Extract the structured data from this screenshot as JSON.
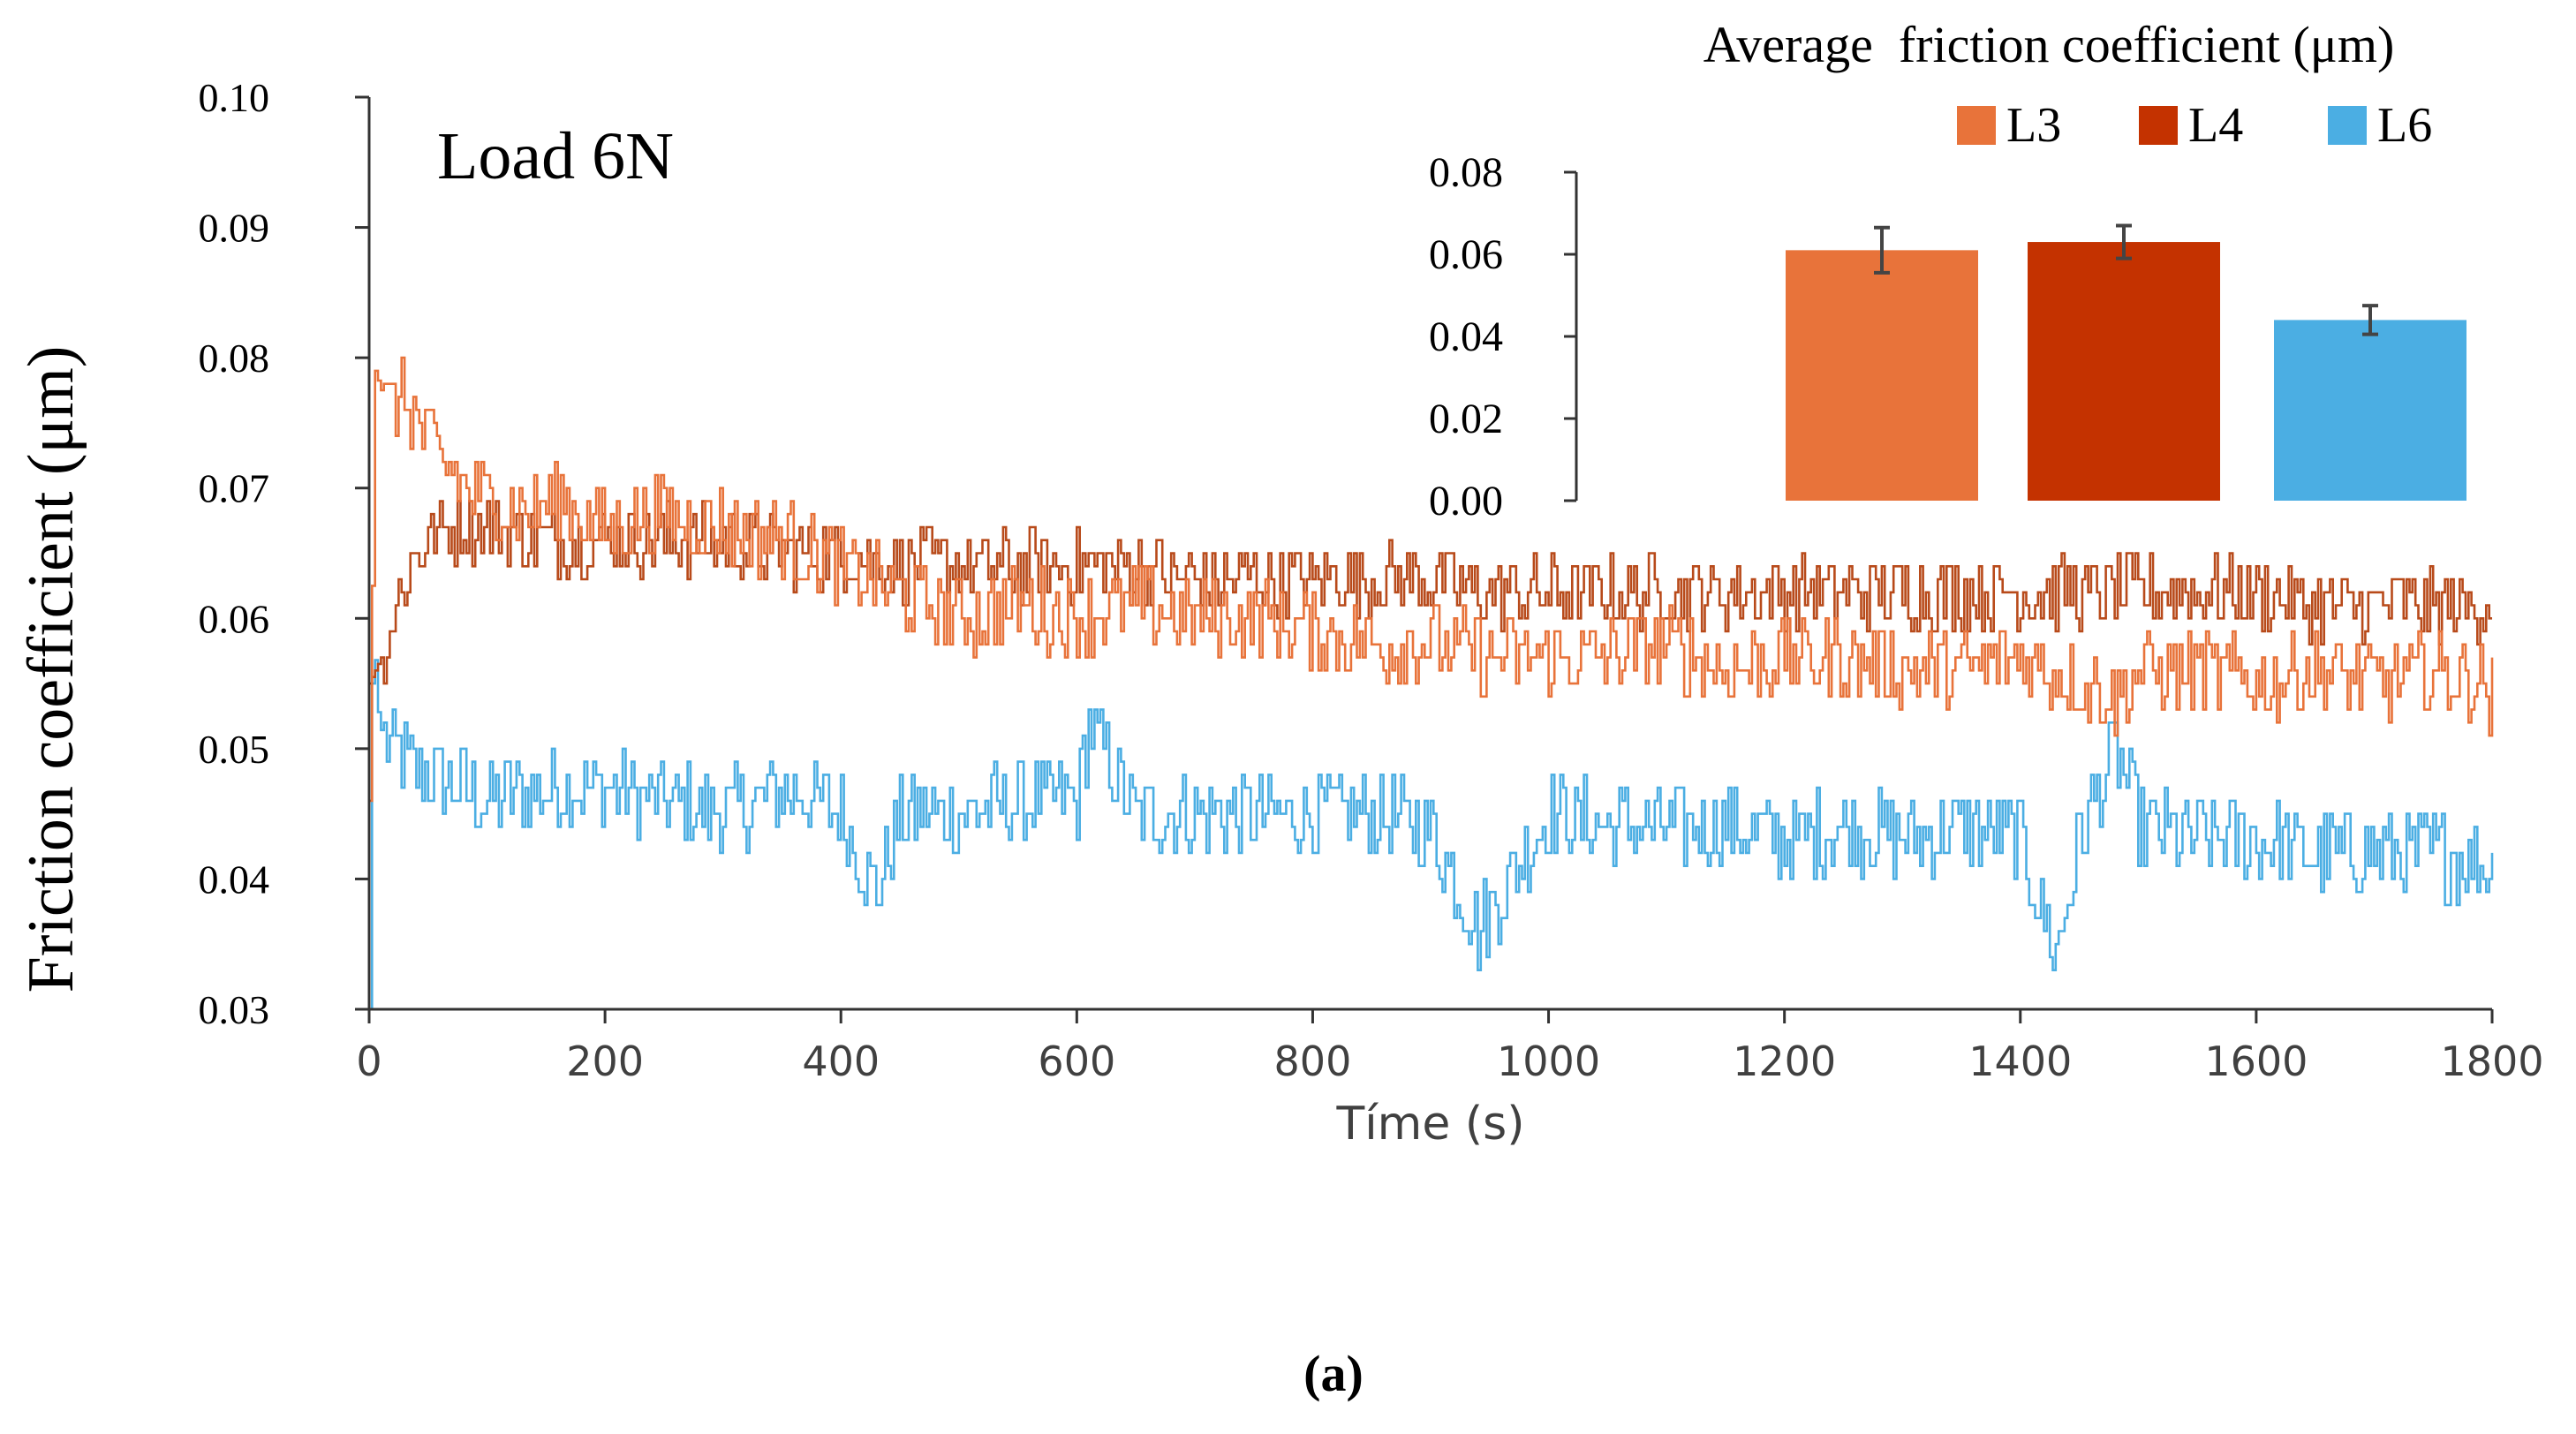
{
  "colors": {
    "L3": "#E8733A",
    "L4": "#C43200",
    "L6": "#4BAEE3",
    "L4_line": "#B84A1A",
    "axis": "#333333",
    "text": "#000000",
    "tick_text": "#404040"
  },
  "chart_data": [
    {
      "type": "line",
      "annotation": "Load 6N",
      "xlabel": "Tíme (s)",
      "ylabel": "Friction coefficient (μm)",
      "xlim": [
        0,
        1800
      ],
      "ylim": [
        0.03,
        0.1
      ],
      "xticks": [
        "0",
        "200",
        "400",
        "600",
        "800",
        "1000",
        "1200",
        "1400",
        "1600",
        "1800"
      ],
      "yticks": [
        "0.03",
        "0.04",
        "0.05",
        "0.06",
        "0.07",
        "0.08",
        "0.09",
        "0.10"
      ],
      "series": [
        {
          "name": "L3",
          "x": [
            0,
            5,
            15,
            30,
            45,
            60,
            80,
            100,
            130,
            160,
            200,
            250,
            300,
            350,
            400,
            450,
            500,
            550,
            600,
            650,
            700,
            750,
            800,
            850,
            900,
            950,
            1000,
            1050,
            1100,
            1150,
            1200,
            1250,
            1300,
            1350,
            1400,
            1450,
            1480,
            1500,
            1550,
            1600,
            1650,
            1700,
            1750,
            1790,
            1800
          ],
          "y": [
            0.046,
            0.079,
            0.076,
            0.077,
            0.074,
            0.072,
            0.07,
            0.069,
            0.068,
            0.069,
            0.067,
            0.068,
            0.067,
            0.066,
            0.064,
            0.062,
            0.06,
            0.061,
            0.06,
            0.061,
            0.06,
            0.06,
            0.059,
            0.058,
            0.058,
            0.057,
            0.057,
            0.057,
            0.058,
            0.056,
            0.057,
            0.057,
            0.056,
            0.056,
            0.057,
            0.055,
            0.054,
            0.056,
            0.056,
            0.055,
            0.056,
            0.055,
            0.056,
            0.055,
            0.054
          ]
        },
        {
          "name": "L4",
          "x": [
            0,
            10,
            20,
            30,
            40,
            50,
            60,
            80,
            100,
            150,
            200,
            250,
            300,
            350,
            400,
            450,
            500,
            550,
            600,
            650,
            700,
            750,
            800,
            850,
            900,
            950,
            1000,
            1050,
            1100,
            1150,
            1200,
            1250,
            1300,
            1350,
            1400,
            1450,
            1500,
            1550,
            1600,
            1650,
            1700,
            1750,
            1800
          ],
          "y": [
            0.055,
            0.057,
            0.06,
            0.063,
            0.065,
            0.066,
            0.067,
            0.067,
            0.067,
            0.066,
            0.066,
            0.066,
            0.066,
            0.065,
            0.065,
            0.064,
            0.064,
            0.064,
            0.064,
            0.064,
            0.063,
            0.063,
            0.063,
            0.063,
            0.063,
            0.062,
            0.062,
            0.062,
            0.062,
            0.062,
            0.062,
            0.062,
            0.062,
            0.062,
            0.062,
            0.062,
            0.062,
            0.062,
            0.062,
            0.061,
            0.061,
            0.061,
            0.061
          ]
        },
        {
          "name": "L6",
          "x": [
            0,
            3,
            8,
            15,
            30,
            50,
            80,
            100,
            150,
            200,
            250,
            300,
            350,
            400,
            430,
            450,
            500,
            550,
            600,
            610,
            650,
            700,
            750,
            800,
            850,
            900,
            940,
            1000,
            1050,
            1100,
            1150,
            1200,
            1250,
            1300,
            1350,
            1400,
            1430,
            1450,
            1480,
            1500,
            1550,
            1600,
            1650,
            1700,
            1750,
            1800
          ],
          "y": [
            0.03,
            0.06,
            0.052,
            0.05,
            0.049,
            0.048,
            0.047,
            0.046,
            0.047,
            0.047,
            0.046,
            0.045,
            0.047,
            0.045,
            0.039,
            0.045,
            0.045,
            0.046,
            0.046,
            0.052,
            0.045,
            0.045,
            0.045,
            0.045,
            0.045,
            0.044,
            0.036,
            0.045,
            0.044,
            0.044,
            0.044,
            0.043,
            0.044,
            0.043,
            0.044,
            0.043,
            0.034,
            0.043,
            0.05,
            0.044,
            0.043,
            0.043,
            0.042,
            0.042,
            0.042,
            0.041
          ]
        }
      ]
    },
    {
      "type": "bar",
      "title": "Average  friction coefficient (μm)",
      "categories": [
        "L3",
        "L4",
        "L6"
      ],
      "values": [
        0.061,
        0.063,
        0.044
      ],
      "errors": [
        0.0055,
        0.004,
        0.0035
      ],
      "ylim": [
        0,
        0.08
      ],
      "yticks": [
        "0.00",
        "0.02",
        "0.04",
        "0.06",
        "0.08"
      ],
      "legend": "top",
      "legend_labels": [
        "L3",
        "L4",
        "L6"
      ]
    }
  ],
  "caption": "(a)"
}
